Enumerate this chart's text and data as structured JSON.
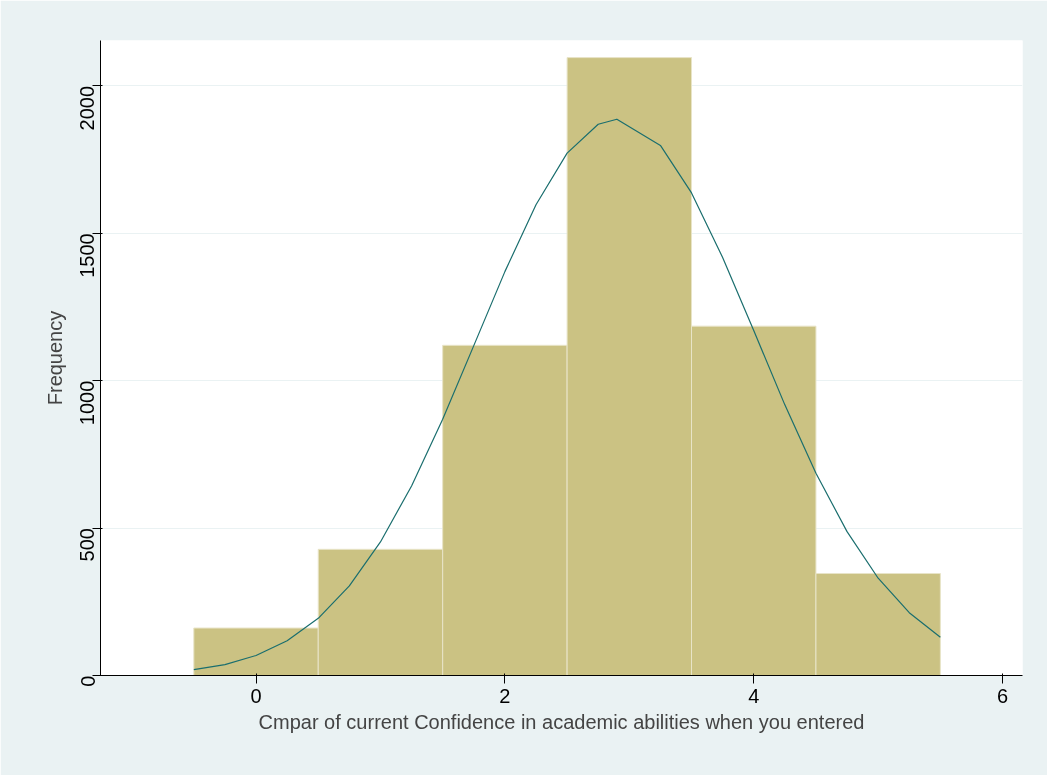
{
  "chart_data": {
    "type": "histogram",
    "xlabel": "Cmpar of current Confidence in academic abilities when you entered",
    "ylabel": "Frequency",
    "xlim": [
      -1.25,
      6.16
    ],
    "ylim": [
      0,
      2154
    ],
    "xticks": [
      0,
      2,
      4,
      6
    ],
    "yticks": [
      0,
      500,
      1000,
      1500,
      2000
    ],
    "grid": "y",
    "series": [
      {
        "color": "#cbc283",
        "bins": [
          -0.5,
          0.5,
          1.5,
          2.5,
          3.5,
          4.5,
          5.5
        ],
        "values": [
          161,
          428,
          1120,
          2096,
          1185,
          346
        ]
      },
      {
        "type": "line",
        "color": "#1a6e6e",
        "x": [
          -0.5,
          -0.25,
          0,
          0.25,
          0.5,
          0.75,
          1,
          1.25,
          1.5,
          1.75,
          2,
          2.25,
          2.5,
          2.75,
          2.9,
          3.25,
          3.5,
          3.75,
          4,
          4.25,
          4.5,
          4.75,
          5,
          5.25,
          5.5
        ],
        "values": [
          20,
          37,
          68,
          118,
          194,
          304,
          453,
          643,
          869,
          1119,
          1370,
          1597,
          1772,
          1870,
          1887,
          1798,
          1637,
          1418,
          1170,
          918,
          686,
          488,
          330,
          213,
          130
        ]
      }
    ]
  }
}
